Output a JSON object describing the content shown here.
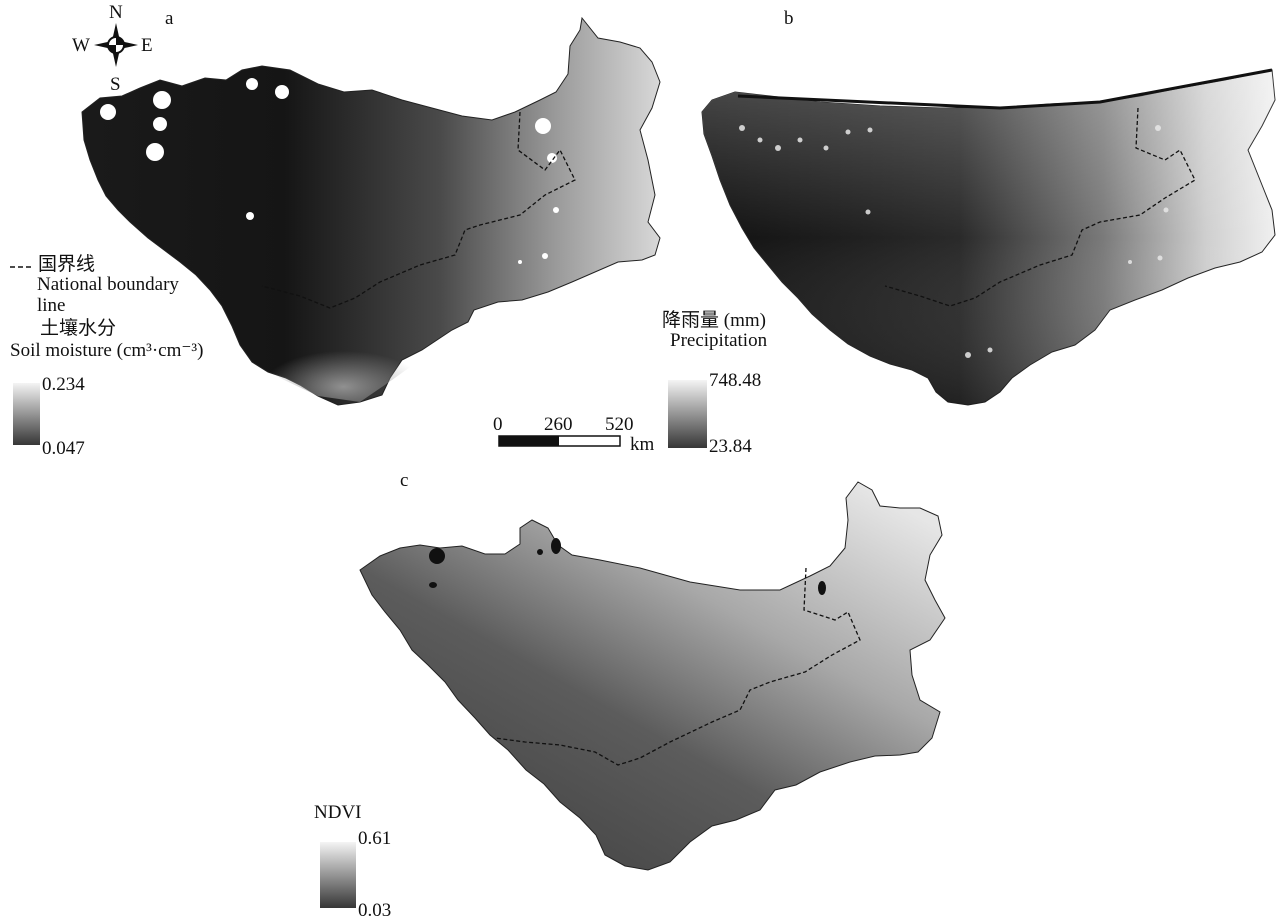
{
  "compass": {
    "north": "N",
    "south": "S",
    "east": "E",
    "west": "W"
  },
  "panels": [
    {
      "label": "a"
    },
    {
      "label": "b"
    },
    {
      "label": "c"
    }
  ],
  "boundary_legend": {
    "label_zh": "国界线",
    "label_en_1": "National boundary",
    "label_en_2": "line"
  },
  "soil_moisture_legend": {
    "title_zh": "土壤水分",
    "title_en": "Soil moisture (cm³·cm⁻³)",
    "max": "0.234",
    "min": "0.047",
    "colors": [
      "#f2f2f2",
      "#3a3a3a"
    ]
  },
  "precipitation_legend": {
    "title_zh": "降雨量 (mm)",
    "title_en": "Precipitation",
    "max": "748.48",
    "min": "23.84",
    "colors": [
      "#f2f2f2",
      "#3a3a3a"
    ]
  },
  "ndvi_legend": {
    "title": "NDVI",
    "max": "0.61",
    "min": "0.03",
    "colors": [
      "#f2f2f2",
      "#3a3a3a"
    ]
  },
  "scale_bar": {
    "ticks": [
      "0",
      "260",
      "520"
    ],
    "unit": "km"
  }
}
